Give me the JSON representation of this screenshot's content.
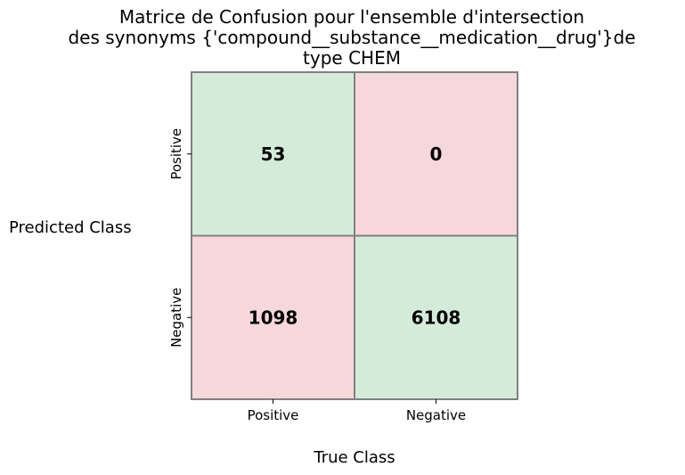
{
  "chart_data": {
    "type": "heatmap",
    "title_lines": [
      "Matrice de Confusion pour l'ensemble d'intersection",
      "des synonyms {'compound__substance__medication__drug'}de",
      "type CHEM"
    ],
    "xlabel": "True Class",
    "ylabel": "Predicted Class",
    "x_categories": [
      "Positive",
      "Negative"
    ],
    "y_categories": [
      "Positive",
      "Negative"
    ],
    "cells": [
      {
        "row": 0,
        "col": 0,
        "value": 53,
        "kind": "correct"
      },
      {
        "row": 0,
        "col": 1,
        "value": 0,
        "kind": "incorrect"
      },
      {
        "row": 1,
        "col": 0,
        "value": 1098,
        "kind": "incorrect"
      },
      {
        "row": 1,
        "col": 1,
        "value": 6108,
        "kind": "correct"
      }
    ],
    "colors": {
      "correct": "#d4ebda",
      "incorrect": "#f6d7da",
      "cell_border": "#808080",
      "text": "#000000"
    },
    "grid": false,
    "legend": "none"
  }
}
